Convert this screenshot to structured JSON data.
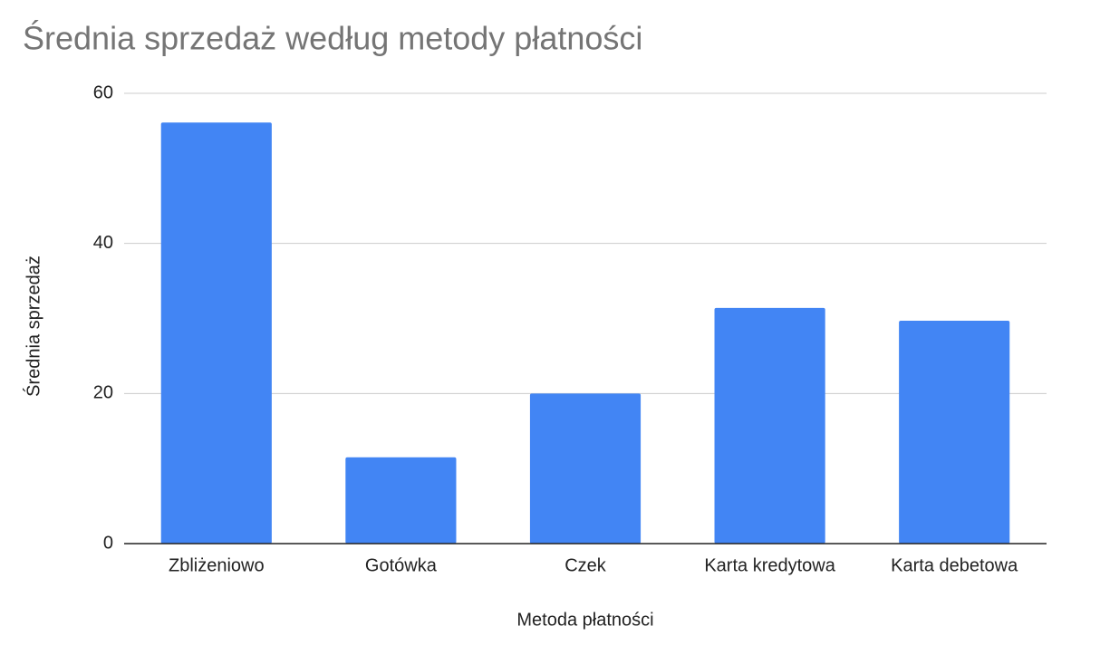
{
  "chart_data": {
    "type": "bar",
    "title": "Średnia sprzedaż według metody płatności",
    "x_label": "Metoda płatności",
    "y_label": "Średnia sprzedaż",
    "categories": [
      "Zbliżeniowo",
      "Gotówka",
      "Czek",
      "Karta kredytowa",
      "Karta debetowa"
    ],
    "values": [
      56.1,
      11.5,
      20.0,
      31.4,
      29.7
    ],
    "color": "#4285f4",
    "ylim": [
      0,
      60
    ],
    "yticks": [
      0,
      20,
      40,
      60
    ],
    "grid": true
  }
}
